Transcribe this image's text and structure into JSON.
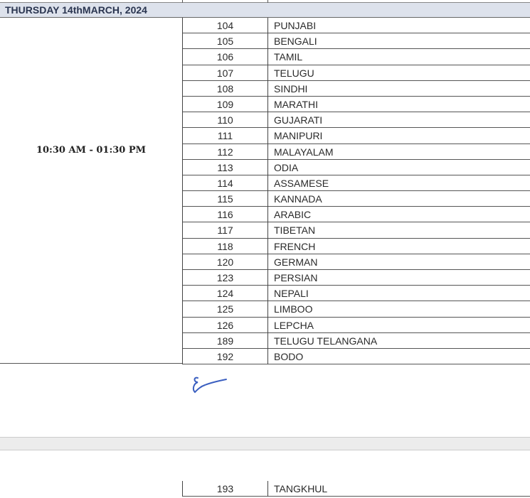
{
  "header": {
    "date": "THURSDAY 14thMARCH, 2024"
  },
  "session_time": "10:30 AM - 01:30 PM",
  "subjects": [
    {
      "code": "104",
      "name": "PUNJABI"
    },
    {
      "code": "105",
      "name": "BENGALI"
    },
    {
      "code": "106",
      "name": "TAMIL"
    },
    {
      "code": "107",
      "name": "TELUGU"
    },
    {
      "code": "108",
      "name": "SINDHI"
    },
    {
      "code": "109",
      "name": "MARATHI"
    },
    {
      "code": "110",
      "name": "GUJARATI"
    },
    {
      "code": "111",
      "name": "MANIPURI"
    },
    {
      "code": "112",
      "name": "MALAYALAM"
    },
    {
      "code": "113",
      "name": "ODIA"
    },
    {
      "code": "114",
      "name": "ASSAMESE"
    },
    {
      "code": "115",
      "name": "KANNADA"
    },
    {
      "code": "116",
      "name": "ARABIC"
    },
    {
      "code": "117",
      "name": "TIBETAN"
    },
    {
      "code": "118",
      "name": "FRENCH"
    },
    {
      "code": "120",
      "name": "GERMAN"
    },
    {
      "code": "123",
      "name": "PERSIAN"
    },
    {
      "code": "124",
      "name": "NEPALI"
    },
    {
      "code": "125",
      "name": "LIMBOO"
    },
    {
      "code": "126",
      "name": "LEPCHA"
    },
    {
      "code": "189",
      "name": "TELUGU TELANGANA"
    },
    {
      "code": "192",
      "name": "BODO"
    }
  ],
  "next_page_subjects": [
    {
      "code": "193",
      "name": "TANGKHUL"
    }
  ],
  "colors": {
    "header_bg": "#dde2ec",
    "signature_ink": "#3b5fc0"
  }
}
